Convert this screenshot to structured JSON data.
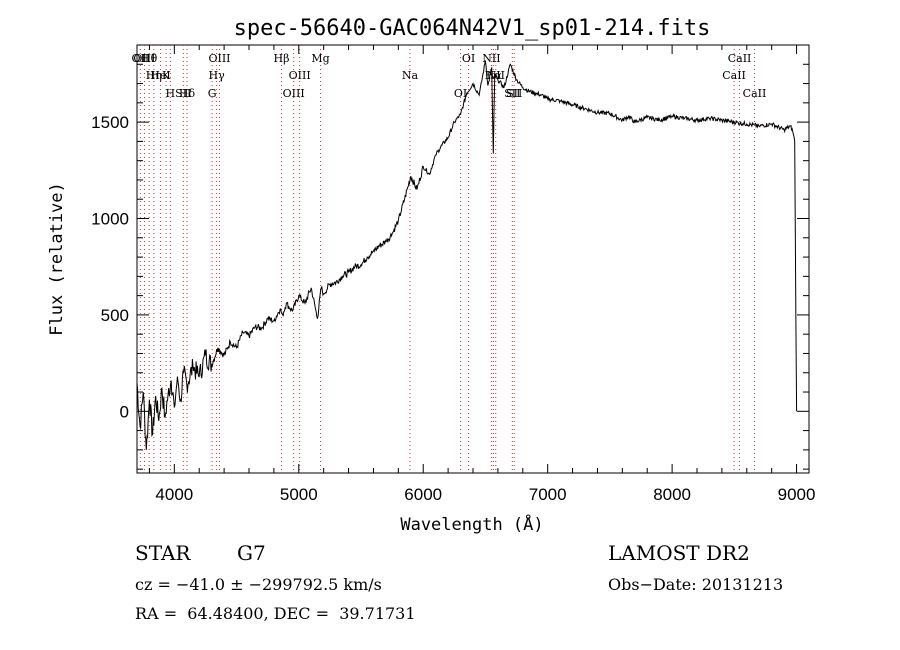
{
  "chart_data": {
    "type": "line",
    "title": "spec-56640-GAC064N42V1_sp01-214.fits",
    "xlabel": "Wavelength (Å)",
    "ylabel": "Flux (relative)",
    "xlim": [
      3700,
      9100
    ],
    "ylim": [
      -320,
      1900
    ],
    "xticks": [
      4000,
      5000,
      6000,
      7000,
      8000,
      9000
    ],
    "yticks": [
      0,
      500,
      1000,
      1500
    ],
    "grid": false,
    "line_color": "#000000",
    "marker_color": "#cc3333",
    "series": [
      {
        "x": [
          3700,
          3725,
          3750,
          3775,
          3800,
          3825,
          3850,
          3875,
          3900,
          3925,
          3950,
          3975,
          4000,
          4025,
          4050,
          4075,
          4100,
          4150,
          4200,
          4250,
          4300,
          4350,
          4400,
          4450,
          4500,
          4550,
          4600,
          4650,
          4700,
          4750,
          4800,
          4850,
          4870,
          4900,
          4950,
          5000,
          5050,
          5100,
          5150,
          5180,
          5200,
          5250,
          5300,
          5350,
          5400,
          5450,
          5500,
          5550,
          5600,
          5650,
          5700,
          5750,
          5800,
          5850,
          5900,
          5950,
          6000,
          6050,
          6100,
          6150,
          6200,
          6250,
          6300,
          6350,
          6400,
          6450,
          6500,
          6520,
          6550,
          6563,
          6575,
          6600,
          6650,
          6700,
          6750,
          6800,
          6850,
          6900,
          6950,
          7000,
          7100,
          7200,
          7300,
          7400,
          7500,
          7600,
          7650,
          7700,
          7800,
          7900,
          8000,
          8100,
          8200,
          8300,
          8400,
          8500,
          8600,
          8700,
          8800,
          8900,
          8950,
          8970,
          8985,
          9000
        ],
        "y": [
          150,
          -80,
          100,
          -200,
          60,
          -120,
          80,
          -50,
          120,
          -30,
          90,
          160,
          20,
          180,
          60,
          200,
          140,
          230,
          180,
          290,
          240,
          330,
          290,
          360,
          330,
          410,
          390,
          440,
          430,
          480,
          470,
          530,
          500,
          560,
          520,
          600,
          560,
          640,
          480,
          640,
          610,
          660,
          670,
          700,
          720,
          750,
          760,
          800,
          830,
          860,
          880,
          920,
          990,
          1100,
          1220,
          1150,
          1270,
          1230,
          1330,
          1380,
          1420,
          1500,
          1540,
          1650,
          1700,
          1640,
          1820,
          1690,
          1780,
          1340,
          1750,
          1720,
          1680,
          1800,
          1720,
          1680,
          1660,
          1650,
          1640,
          1620,
          1610,
          1590,
          1570,
          1550,
          1545,
          1510,
          1530,
          1500,
          1525,
          1510,
          1530,
          1520,
          1510,
          1520,
          1510,
          1500,
          1490,
          1480,
          1490,
          1460,
          1480,
          1450,
          1400,
          0
        ]
      }
    ],
    "lines": [
      {
        "label": "Hθ",
        "x": 3798
      },
      {
        "label": "K",
        "x": 3934
      },
      {
        "label": "Hδ",
        "x": 4102
      },
      {
        "label": "OII",
        "x": 3727
      },
      {
        "label": "HeI",
        "x": 3889
      },
      {
        "label": "SII",
        "x": 4072
      },
      {
        "label": "OIII",
        "x": 3760
      },
      {
        "label": "Hη",
        "x": 3835
      },
      {
        "label": "H",
        "x": 3968
      },
      {
        "label": "OIII",
        "x": 4363
      },
      {
        "label": "Hγ",
        "x": 4340
      },
      {
        "label": "G",
        "x": 4304
      },
      {
        "label": "Hβ",
        "x": 4861
      },
      {
        "label": "OIII",
        "x": 5007
      },
      {
        "label": "OIII",
        "x": 4959
      },
      {
        "label": "Mg",
        "x": 5175
      },
      {
        "label": "Na",
        "x": 5893
      },
      {
        "label": "OI",
        "x": 6300
      },
      {
        "label": "OI",
        "x": 6364
      },
      {
        "label": "Hα",
        "x": 6563
      },
      {
        "label": "SII",
        "x": 6716
      },
      {
        "label": "NII",
        "x": 6548
      },
      {
        "label": "NII",
        "x": 6583
      },
      {
        "label": "SII",
        "x": 6731
      },
      {
        "label": "CaII",
        "x": 8542
      },
      {
        "label": "CaII",
        "x": 8498
      },
      {
        "label": "CaII",
        "x": 8662
      }
    ]
  },
  "info": {
    "object_class": "STAR",
    "subclass": "G7",
    "survey": "LAMOST DR2",
    "cz": "cz = −41.0 ± −299792.5 km/s",
    "obs_date": "Obs−Date: 20131213",
    "coords": "RA =  64.48400, DEC =  39.71731"
  }
}
